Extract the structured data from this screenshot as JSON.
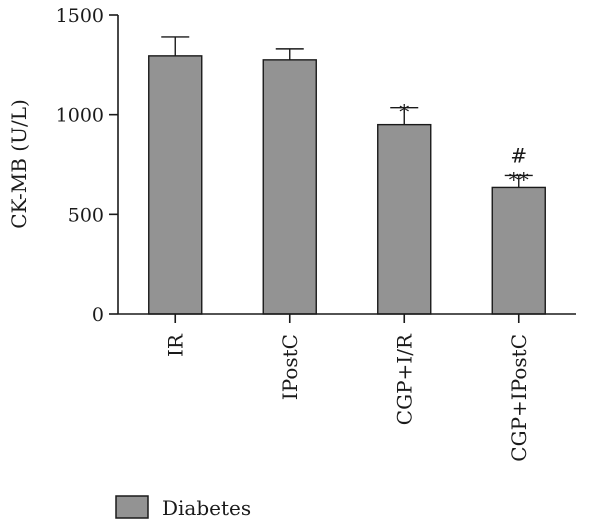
{
  "chart_data": {
    "type": "bar",
    "categories": [
      "IR",
      "IPostC",
      "CGP+I/R",
      "CGP+IPostC"
    ],
    "series": [
      {
        "name": "Diabetes",
        "values": [
          1295,
          1275,
          950,
          635
        ],
        "errors": [
          95,
          55,
          85,
          60
        ]
      }
    ],
    "annotations": [
      "",
      "",
      "*",
      "**"
    ],
    "annotations_top": [
      "",
      "",
      "",
      "#"
    ],
    "xlabel": "",
    "ylabel": "CK-MB (U/L)",
    "ylim": [
      0,
      1500
    ],
    "yticks": [
      0,
      500,
      1000,
      1500
    ],
    "grid": false,
    "legend_position": "bottom-left",
    "colors": {
      "bar": "#939393",
      "stroke": "#1a1a1a"
    }
  }
}
